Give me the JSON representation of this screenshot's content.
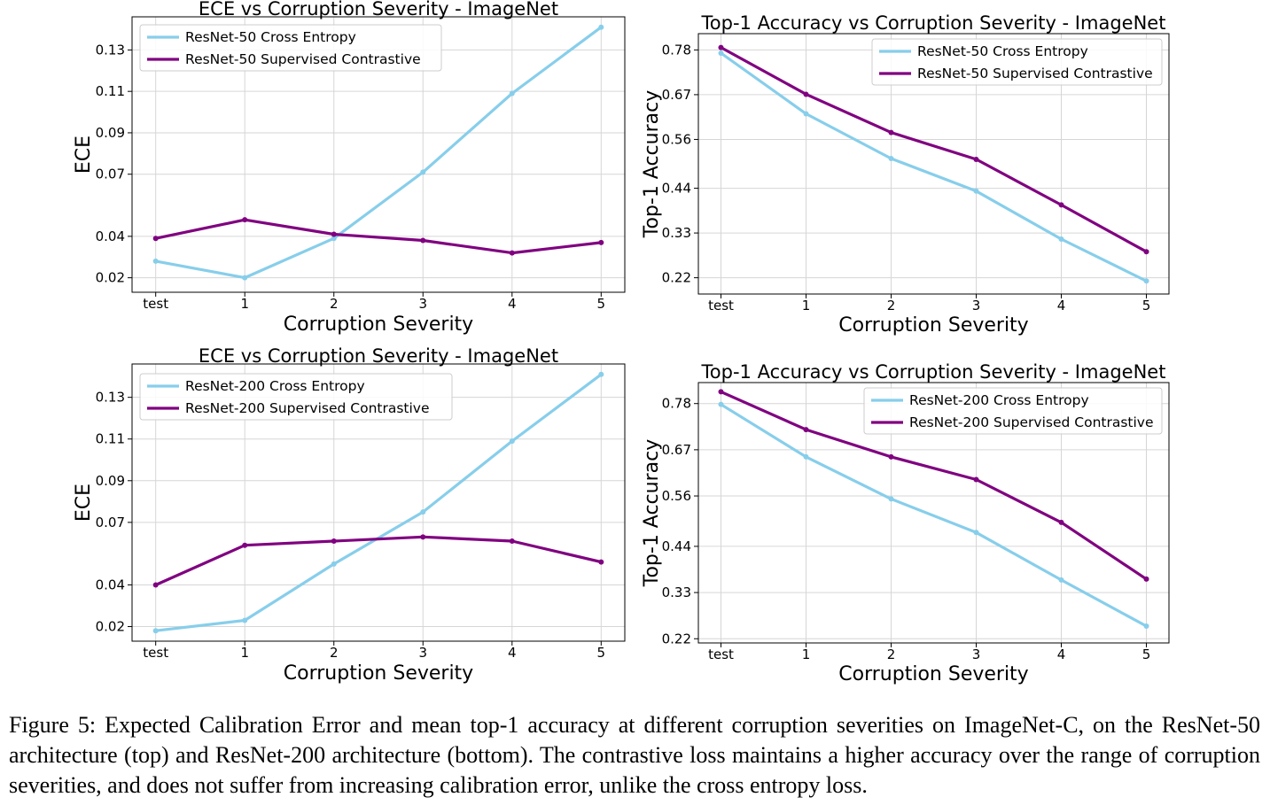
{
  "chart_data": [
    {
      "type": "line",
      "title": "ECE vs Corruption Severity - ImageNet",
      "xlabel": "Corruption Severity",
      "ylabel": "ECE",
      "categories": [
        "test",
        "1",
        "2",
        "3",
        "4",
        "5"
      ],
      "yticks": [
        "0.02",
        "0.04",
        "0.07",
        "0.09",
        "0.11",
        "0.13"
      ],
      "ylim": [
        0.013,
        0.146
      ],
      "grid": true,
      "legend": "top-left",
      "series": [
        {
          "name": "ResNet-50 Cross Entropy",
          "color": "#87CEEB",
          "values": [
            0.028,
            0.02,
            0.039,
            0.071,
            0.109,
            0.141
          ]
        },
        {
          "name": "ResNet-50 Supervised Contrastive",
          "color": "#800080",
          "values": [
            0.039,
            0.048,
            0.041,
            0.038,
            0.032,
            0.037
          ]
        }
      ]
    },
    {
      "type": "line",
      "title": "Top-1 Accuracy vs Corruption Severity - ImageNet",
      "xlabel": "Corruption Severity",
      "ylabel": "Top-1 Accuracy",
      "categories": [
        "test",
        "1",
        "2",
        "3",
        "4",
        "5"
      ],
      "yticks": [
        "0.22",
        "0.33",
        "0.44",
        "0.56",
        "0.67",
        "0.78"
      ],
      "ylim": [
        0.18,
        0.82
      ],
      "grid": true,
      "legend": "top-right",
      "series": [
        {
          "name": "ResNet-50 Cross Entropy",
          "color": "#87CEEB",
          "values": [
            0.772,
            0.623,
            0.513,
            0.433,
            0.315,
            0.212
          ]
        },
        {
          "name": "ResNet-50 Supervised Contrastive",
          "color": "#800080",
          "values": [
            0.786,
            0.671,
            0.577,
            0.511,
            0.399,
            0.284
          ]
        }
      ]
    },
    {
      "type": "line",
      "title": "ECE vs Corruption Severity - ImageNet",
      "xlabel": "Corruption Severity",
      "ylabel": "ECE",
      "categories": [
        "test",
        "1",
        "2",
        "3",
        "4",
        "5"
      ],
      "yticks": [
        "0.02",
        "0.04",
        "0.07",
        "0.09",
        "0.11",
        "0.13"
      ],
      "ylim": [
        0.013,
        0.146
      ],
      "grid": true,
      "legend": "top-left",
      "series": [
        {
          "name": "ResNet-200 Cross Entropy",
          "color": "#87CEEB",
          "values": [
            0.018,
            0.023,
            0.05,
            0.075,
            0.109,
            0.141
          ]
        },
        {
          "name": "ResNet-200 Supervised Contrastive",
          "color": "#800080",
          "values": [
            0.04,
            0.059,
            0.061,
            0.063,
            0.061,
            0.051
          ]
        }
      ]
    },
    {
      "type": "line",
      "title": "Top-1 Accuracy vs Corruption Severity - ImageNet",
      "xlabel": "Corruption Severity",
      "ylabel": "Top-1 Accuracy",
      "categories": [
        "test",
        "1",
        "2",
        "3",
        "4",
        "5"
      ],
      "yticks": [
        "0.22",
        "0.33",
        "0.44",
        "0.56",
        "0.67",
        "0.78"
      ],
      "ylim": [
        0.21,
        0.83
      ],
      "grid": true,
      "legend": "top-right",
      "series": [
        {
          "name": "ResNet-200 Cross Entropy",
          "color": "#87CEEB",
          "values": [
            0.778,
            0.653,
            0.553,
            0.473,
            0.36,
            0.25
          ]
        },
        {
          "name": "ResNet-200 Supervised Contrastive",
          "color": "#800080",
          "values": [
            0.808,
            0.718,
            0.653,
            0.599,
            0.497,
            0.362
          ]
        }
      ]
    }
  ],
  "caption": "Figure 5:  Expected Calibration Error and mean top-1 accuracy at different corruption severities on ImageNet-C, on the ResNet-50 architecture (top) and ResNet-200 architecture (bottom).  The contrastive loss maintains a higher accuracy over the range of corruption severities, and does not suffer from increasing calibration error, unlike the cross entropy loss."
}
